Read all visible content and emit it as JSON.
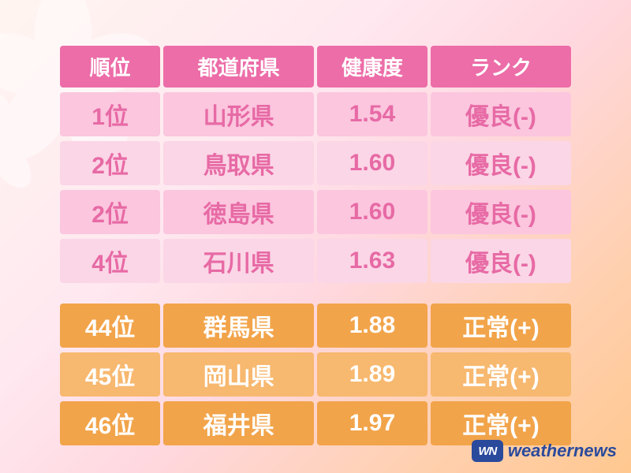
{
  "columns": [
    "順位",
    "都道府県",
    "健康度",
    "ランク"
  ],
  "top_rows": [
    {
      "rank": "1位",
      "pref": "山形県",
      "score": "1.54",
      "grade": "優良(-)",
      "shade": "dark"
    },
    {
      "rank": "2位",
      "pref": "鳥取県",
      "score": "1.60",
      "grade": "優良(-)",
      "shade": "light"
    },
    {
      "rank": "2位",
      "pref": "徳島県",
      "score": "1.60",
      "grade": "優良(-)",
      "shade": "dark"
    },
    {
      "rank": "4位",
      "pref": "石川県",
      "score": "1.63",
      "grade": "優良(-)",
      "shade": "light"
    }
  ],
  "bottom_rows": [
    {
      "rank": "44位",
      "pref": "群馬県",
      "score": "1.88",
      "grade": "正常(+)",
      "shade": "dark"
    },
    {
      "rank": "45位",
      "pref": "岡山県",
      "score": "1.89",
      "grade": "正常(+)",
      "shade": "light"
    },
    {
      "rank": "46位",
      "pref": "福井県",
      "score": "1.97",
      "grade": "正常(+)",
      "shade": "dark"
    }
  ],
  "colors": {
    "header_bg": "#ec6da8",
    "pink_dark": "#fbc6de",
    "pink_light": "#fbd6e6",
    "pink_text": "#e76aa5",
    "orange_dark": "#f2a44a",
    "orange_light": "#f7b86f",
    "orange_text": "#ffffff",
    "logo": "#2a4a9c"
  },
  "logo": {
    "mark": "WN",
    "text": "weathernews"
  }
}
